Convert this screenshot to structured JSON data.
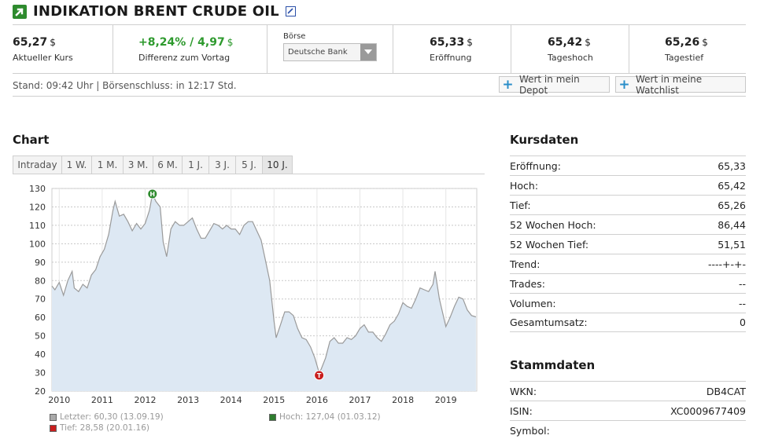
{
  "header": {
    "title": "INDIKATION BRENT CRUDE OIL",
    "arrow_icon": "trend-up-arrow-icon",
    "edit_icon": "edit-icon",
    "accent_green": "#2e8b2e"
  },
  "quote": {
    "current": {
      "value": "65,27",
      "currency": "$",
      "label": "Aktueller Kurs"
    },
    "diff": {
      "value": "+8,24% / 4,97",
      "currency": "$",
      "label": "Differenz zum Vortag"
    },
    "boerse": {
      "label": "Börse",
      "selected": "Deutsche Bank"
    },
    "open": {
      "value": "65,33",
      "currency": "$",
      "label": "Eröffnung"
    },
    "high": {
      "value": "65,42",
      "currency": "$",
      "label": "Tageshoch"
    },
    "low": {
      "value": "65,26",
      "currency": "$",
      "label": "Tagestief"
    }
  },
  "stand": {
    "text": "Stand: 09:42 Uhr | Börsenschluss: in 12:17 Std.",
    "depot_button": "Wert in mein Depot",
    "watchlist_button": "Wert in meine Watchlist"
  },
  "chart_section": {
    "title": "Chart",
    "tabs": [
      "Intraday",
      "1 W.",
      "1 M.",
      "3 M.",
      "6 M.",
      "1 J.",
      "3 J.",
      "5 J.",
      "10 J."
    ],
    "active_tab": "10 J."
  },
  "chart_data": {
    "type": "area",
    "x_ticks": [
      "2010",
      "2011",
      "2012",
      "2013",
      "2014",
      "2015",
      "2016",
      "2017",
      "2018",
      "2019"
    ],
    "y_ticks": [
      20,
      30,
      40,
      50,
      60,
      70,
      80,
      90,
      100,
      110,
      120,
      130
    ],
    "ylim": [
      20,
      130
    ],
    "xlim": [
      2009.83,
      2019.72
    ],
    "grid": true,
    "line_color": "#9a9a9a",
    "fill_color": "#dde8f3",
    "series": [
      {
        "x": [
          2009.83,
          2009.9,
          2010.0,
          2010.1,
          2010.2,
          2010.3,
          2010.35,
          2010.45,
          2010.55,
          2010.65,
          2010.75,
          2010.85,
          2010.95,
          2011.05,
          2011.15,
          2011.25,
          2011.3,
          2011.4,
          2011.5,
          2011.6,
          2011.7,
          2011.8,
          2011.9,
          2012.0,
          2012.1,
          2012.17,
          2012.25,
          2012.35,
          2012.42,
          2012.5,
          2012.6,
          2012.7,
          2012.8,
          2012.9,
          2013.0,
          2013.1,
          2013.2,
          2013.3,
          2013.4,
          2013.5,
          2013.6,
          2013.7,
          2013.8,
          2013.9,
          2014.0,
          2014.1,
          2014.2,
          2014.3,
          2014.4,
          2014.5,
          2014.6,
          2014.7,
          2014.8,
          2014.9,
          2015.0,
          2015.05,
          2015.15,
          2015.25,
          2015.35,
          2015.45,
          2015.55,
          2015.65,
          2015.75,
          2015.85,
          2015.95,
          2016.05,
          2016.1,
          2016.2,
          2016.3,
          2016.4,
          2016.5,
          2016.6,
          2016.7,
          2016.8,
          2016.9,
          2017.0,
          2017.1,
          2017.2,
          2017.3,
          2017.4,
          2017.5,
          2017.6,
          2017.7,
          2017.8,
          2017.9,
          2018.0,
          2018.1,
          2018.2,
          2018.3,
          2018.4,
          2018.5,
          2018.6,
          2018.7,
          2018.75,
          2018.85,
          2018.95,
          2019.0,
          2019.1,
          2019.2,
          2019.3,
          2019.4,
          2019.5,
          2019.6,
          2019.7
        ],
        "y": [
          77,
          75,
          79,
          72,
          80,
          85,
          76,
          74,
          78,
          76,
          83,
          86,
          93,
          97,
          105,
          118,
          123,
          115,
          116,
          112,
          107,
          111,
          108,
          111,
          118,
          127,
          123,
          120,
          101,
          93,
          108,
          112,
          110,
          110,
          112,
          114,
          108,
          103,
          103,
          107,
          111,
          110,
          108,
          110,
          108,
          108,
          105,
          110,
          112,
          112,
          107,
          102,
          91,
          80,
          58,
          49,
          56,
          63,
          63,
          61,
          54,
          49,
          48,
          44,
          38,
          30,
          32,
          38,
          47,
          49,
          46,
          46,
          49,
          48,
          50,
          54,
          56,
          52,
          52,
          49,
          47,
          51,
          56,
          58,
          62,
          68,
          66,
          65,
          70,
          76,
          75,
          74,
          78,
          85,
          70,
          60,
          55,
          60,
          66,
          71,
          70,
          64,
          61,
          60.3
        ]
      }
    ],
    "high_marker": {
      "x": 2012.17,
      "y": 127.04,
      "label": "H"
    },
    "low_marker": {
      "x": 2016.05,
      "y": 28.58,
      "label": "T"
    }
  },
  "legend": {
    "last": "Letzter: 60,30 (13.09.19)",
    "high": "Hoch: 127,04 (01.03.12)",
    "low": "Tief: 28,58 (20.01.16)",
    "last_color": "#9a9a9a",
    "high_color": "#2e7d2e",
    "low_color": "#c81e1e"
  },
  "kursdaten": {
    "title": "Kursdaten",
    "rows": [
      {
        "label": "Eröffnung:",
        "value": "65,33"
      },
      {
        "label": "Hoch:",
        "value": "65,42"
      },
      {
        "label": "Tief:",
        "value": "65,26"
      },
      {
        "label": "52 Wochen Hoch:",
        "value": "86,44"
      },
      {
        "label": "52 Wochen Tief:",
        "value": "51,51"
      },
      {
        "label": "Trend:",
        "value": "----+-+-"
      },
      {
        "label": "Trades:",
        "value": "--"
      },
      {
        "label": "Volumen:",
        "value": "--"
      },
      {
        "label": "Gesamtumsatz:",
        "value": "0"
      }
    ]
  },
  "stammdaten": {
    "title": "Stammdaten",
    "rows": [
      {
        "label": "WKN:",
        "value": "DB4CAT"
      },
      {
        "label": "ISIN:",
        "value": "XC0009677409"
      },
      {
        "label": "Symbol:",
        "value": ""
      }
    ]
  }
}
